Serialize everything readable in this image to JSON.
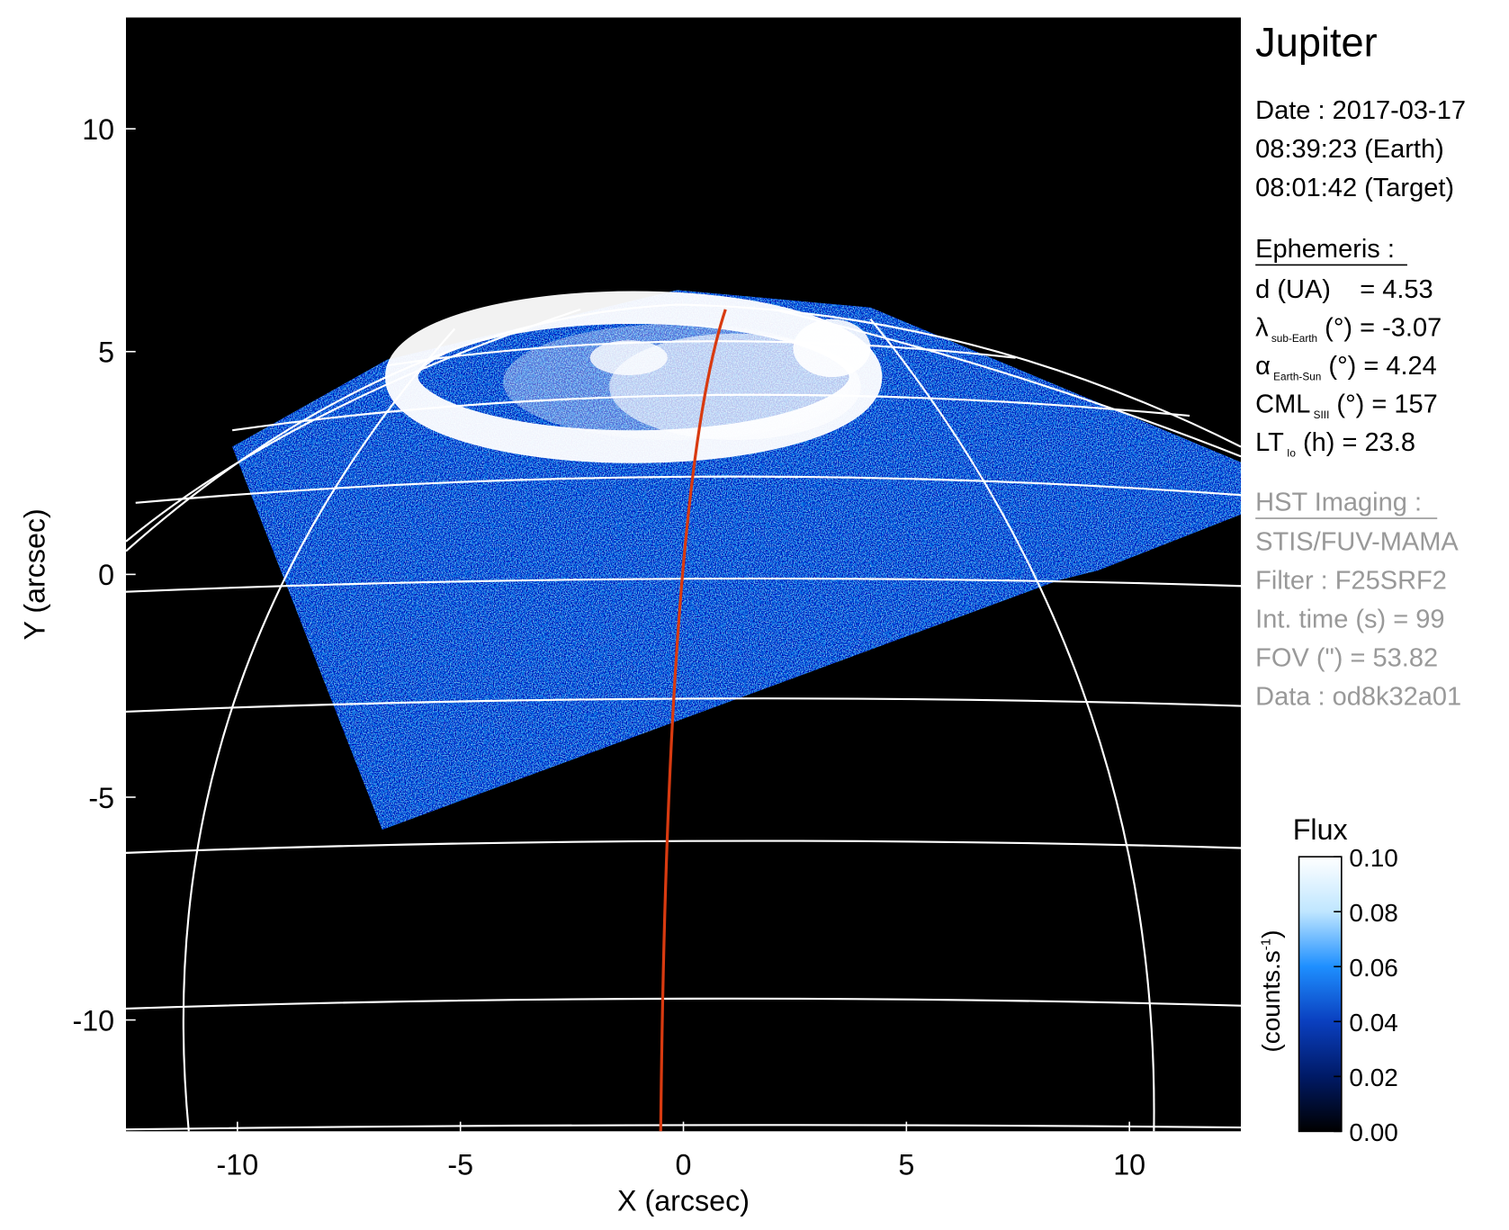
{
  "chart_data": {
    "type": "image",
    "xlabel": "X (arcsec)",
    "ylabel": "Y (arcsec)",
    "xlim": [
      -12.5,
      12.5
    ],
    "ylim": [
      -12.5,
      12.5
    ],
    "xticks": [
      -10,
      -5,
      0,
      5,
      10
    ],
    "yticks": [
      -10,
      -5,
      0,
      5,
      10
    ],
    "colorbar": {
      "title": "Flux",
      "label": "(counts.s",
      "label_sup": "-1",
      "label_end": ")",
      "clim": [
        0,
        0.1
      ],
      "ticks": [
        {
          "value": 0,
          "label": "0.00"
        },
        0.02,
        0.04,
        0.06,
        0.08,
        {
          "value": 0.1,
          "label": "0.10"
        }
      ],
      "colors": [
        "#000000",
        "#001a66",
        "#0a3fbf",
        "#1e8fff",
        "#bfe6ff",
        "#ffffff"
      ]
    }
  },
  "info": {
    "title": "Jupiter",
    "date": [
      "Date : 2017-03-17",
      "08:39:23 (Earth)",
      "08:01:42 (Target)"
    ],
    "ephemeris": {
      "title": "Ephemeris :",
      "rows": [
        {
          "text": "d (UA)    = 4.53"
        },
        {
          "symbol": "λ",
          "sub": "sub-Earth",
          "text": " (°) = -3.07"
        },
        {
          "symbol": "α",
          "sub": "Earth-Sun",
          "text": " (°) = 4.24"
        },
        {
          "symbol": "CML",
          "sub": "SIII",
          "text": " (°) = 157"
        },
        {
          "symbol": "LT",
          "sub": "Io",
          "text": " (h) = 23.8"
        }
      ]
    },
    "imaging": {
      "title": "HST Imaging :",
      "rows": [
        "STIS/FUV-MAMA",
        "Filter : F25SRF2",
        "Int. time (s) = 99",
        "FOV (\") = 53.82",
        "Data : od8k32a01"
      ]
    }
  }
}
